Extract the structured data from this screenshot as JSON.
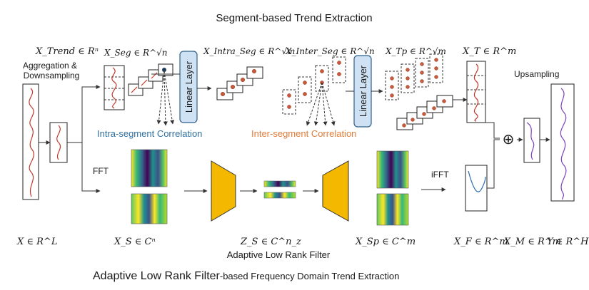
{
  "titles": {
    "top": "Segment-based Trend Extraction",
    "filter": "Adaptive Low Rank Filter",
    "bottom_main": "Adaptive Low Rank Filter",
    "bottom_rest": "-based Frequency Domain Trend Extraction"
  },
  "labels": {
    "agg_line1": "Aggregation &",
    "agg_line2": "Downsampling",
    "fft": "FFT",
    "ifft": "iFFT",
    "upsampling": "Upsampling",
    "intra_corr": "Intra-segment Correlation",
    "inter_corr": "Inter-segment Correlation",
    "linear_layer_1": "Linear Layer",
    "linear_layer_2": "Linear Layer",
    "plus": "⊕"
  },
  "math": {
    "x_trend": "X_Trend ∈ Rⁿ",
    "x_seg": "X_Seg ∈ R^√n",
    "x_intra": "X_Intra_Seg ∈ R^√m",
    "x_inter": "X_Inter_Seg ∈ R^√n",
    "x_tp": "X_Tp ∈ R^√m",
    "x_t": "X_T ∈ R^m",
    "x_in": "X ∈ R^L",
    "x_s": "X_S ∈ Cⁿ",
    "z_s": "Z_S ∈ C^n_z",
    "x_sp": "X_Sp ∈ C^m",
    "x_f": "X_F ∈ R^m",
    "x_m": "X_M ∈ R^m",
    "y": "Y ∈ R^H"
  },
  "colors": {
    "signal_red": "#c0392b",
    "signal_blue": "#2b6cb0",
    "signal_purple": "#7b3fb8",
    "intra_text": "#2f6f9f",
    "inter_text": "#e07b39",
    "linear_fill": "#cfe2f3",
    "linear_stroke": "#2f5f8a",
    "filter_yellow": "#f5b800",
    "dot": "#c8593a"
  }
}
